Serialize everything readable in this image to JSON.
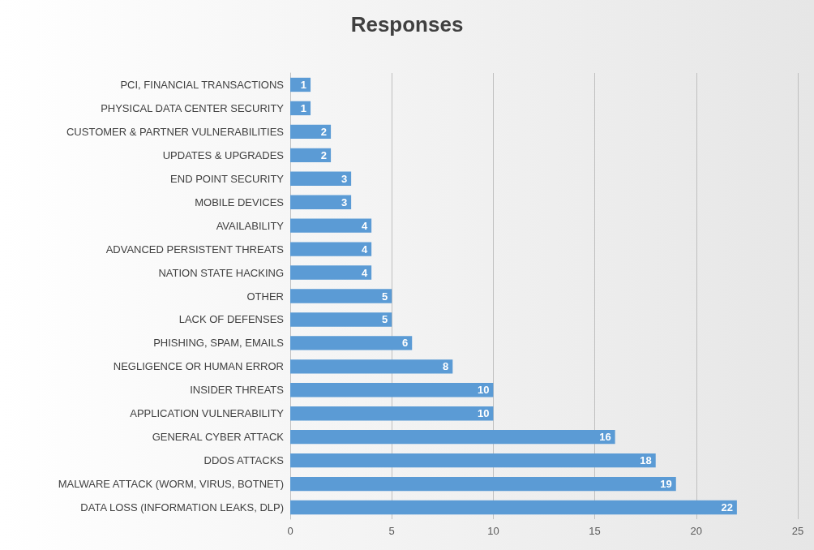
{
  "chart_data": {
    "type": "bar",
    "orientation": "horizontal",
    "title": "Responses",
    "categories": [
      "PCI, FINANCIAL TRANSACTIONS",
      "PHYSICAL DATA CENTER SECURITY",
      "CUSTOMER & PARTNER VULNERABILITIES",
      "UPDATES & UPGRADES",
      "END POINT SECURITY",
      "MOBILE DEVICES",
      "AVAILABILITY",
      "ADVANCED PERSISTENT THREATS",
      "NATION STATE HACKING",
      "OTHER",
      "LACK OF DEFENSES",
      "PHISHING, SPAM, EMAILS",
      "NEGLIGENCE OR HUMAN ERROR",
      "INSIDER THREATS",
      "APPLICATION VULNERABILITY",
      "GENERAL CYBER ATTACK",
      "DDOS ATTACKS",
      "MALWARE ATTACK (WORM, VIRUS, BOTNET)",
      "DATA LOSS (INFORMATION LEAKS, DLP)"
    ],
    "values": [
      1,
      1,
      2,
      2,
      3,
      3,
      4,
      4,
      4,
      5,
      5,
      6,
      8,
      10,
      10,
      16,
      18,
      19,
      22
    ],
    "color": "#5b9bd5",
    "data_labels": true,
    "xlim": [
      0,
      25
    ],
    "xticks": [
      0,
      5,
      10,
      15,
      20,
      25
    ],
    "grid": "x"
  }
}
